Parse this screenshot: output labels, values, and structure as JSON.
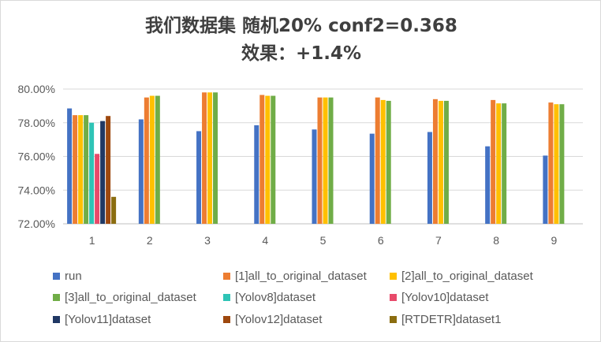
{
  "title_line1": "我们数据集 随机20% conf2=0.368",
  "title_line2": "效果：+1.4%",
  "chart_data": {
    "type": "bar",
    "categories": [
      "1",
      "2",
      "3",
      "4",
      "5",
      "6",
      "7",
      "8",
      "9"
    ],
    "ylim": [
      0.72,
      0.8
    ],
    "yticks": [
      0.72,
      0.74,
      0.76,
      0.78,
      0.8
    ],
    "ytick_labels": [
      "72.00%",
      "74.00%",
      "76.00%",
      "78.00%",
      "80.00%"
    ],
    "grid": true,
    "legend_position": "bottom",
    "series": [
      {
        "name": "run",
        "color": "#4472C4",
        "values": [
          0.7885,
          0.782,
          0.775,
          0.7785,
          0.776,
          0.7735,
          0.7745,
          0.766,
          0.7605
        ]
      },
      {
        "name": "[1]all_to_original_dataset",
        "color": "#ED7D31",
        "values": [
          0.7845,
          0.795,
          0.798,
          0.7965,
          0.795,
          0.795,
          0.794,
          0.7935,
          0.792
        ]
      },
      {
        "name": "[2]all_to_original_dataset",
        "color": "#FFC000",
        "values": [
          0.7845,
          0.796,
          0.798,
          0.796,
          0.795,
          0.7935,
          0.793,
          0.7915,
          0.791
        ]
      },
      {
        "name": "[3]all_to_original_dataset",
        "color": "#70AD47",
        "values": [
          0.7845,
          0.796,
          0.798,
          0.796,
          0.795,
          0.793,
          0.793,
          0.7915,
          0.791
        ]
      },
      {
        "name": "[Yolov8]dataset",
        "color": "#2EC4B6",
        "values": [
          0.78,
          null,
          null,
          null,
          null,
          null,
          null,
          null,
          null
        ]
      },
      {
        "name": "[Yolov10]dataset",
        "color": "#E84A6A",
        "values": [
          0.7615,
          null,
          null,
          null,
          null,
          null,
          null,
          null,
          null
        ]
      },
      {
        "name": "[Yolov11]dataset",
        "color": "#203864",
        "values": [
          0.781,
          null,
          null,
          null,
          null,
          null,
          null,
          null,
          null
        ]
      },
      {
        "name": "[Yolov12]dataset",
        "color": "#9E480E",
        "values": [
          0.784,
          null,
          null,
          null,
          null,
          null,
          null,
          null,
          null
        ]
      },
      {
        "name": "[RTDETR]dataset1",
        "color": "#8B6D10",
        "values": [
          0.736,
          null,
          null,
          null,
          null,
          null,
          null,
          null,
          null
        ]
      }
    ]
  }
}
